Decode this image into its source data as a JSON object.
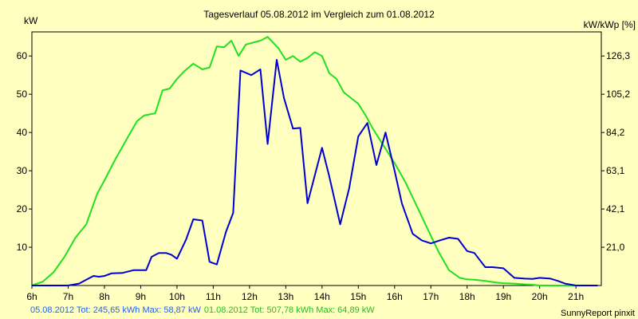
{
  "chart_data": {
    "type": "line",
    "title": "Tagesverlauf 05.08.2012 im Vergleich zum 01.08.2012",
    "ylabel_left": "kW",
    "ylabel_right": "kW/kWp [%]",
    "x_ticks": [
      "6h",
      "7h",
      "8h",
      "9h",
      "10h",
      "11h",
      "12h",
      "13h",
      "14h",
      "15h",
      "16h",
      "17h",
      "18h",
      "19h",
      "20h",
      "21h"
    ],
    "xlim": [
      6,
      21.7
    ],
    "ylim": [
      0,
      66.3
    ],
    "y_ticks_left": [
      10,
      20,
      30,
      40,
      50,
      60
    ],
    "y_ticks_left_labels": [
      "10",
      "20",
      "30",
      "40",
      "50",
      "60"
    ],
    "y_ticks_right_labels": [
      "21,0",
      "42,1",
      "63,1",
      "84,2",
      "105,2",
      "126,3"
    ],
    "grid": false,
    "series": [
      {
        "name": "05.08.2012",
        "color": "#0000d0",
        "x": [
          6.0,
          6.5,
          7.0,
          7.3,
          7.5,
          7.7,
          7.85,
          8.0,
          8.2,
          8.5,
          8.8,
          9.0,
          9.15,
          9.3,
          9.5,
          9.7,
          9.85,
          10.0,
          10.25,
          10.45,
          10.7,
          10.9,
          11.1,
          11.35,
          11.55,
          11.75,
          12.05,
          12.3,
          12.5,
          12.75,
          12.95,
          13.2,
          13.4,
          13.6,
          14.0,
          14.2,
          14.5,
          14.75,
          15.0,
          15.25,
          15.5,
          15.75,
          16.0,
          16.2,
          16.5,
          16.75,
          17.0,
          17.25,
          17.5,
          17.75,
          18.0,
          18.2,
          18.5,
          18.7,
          19.0,
          19.3,
          19.6,
          19.8,
          20.0,
          20.3,
          20.5,
          20.7,
          21.0,
          21.3,
          21.6
        ],
        "y": [
          0,
          0,
          0,
          0.5,
          1.5,
          2.5,
          2.3,
          2.5,
          3.2,
          3.3,
          4.0,
          4.0,
          4.0,
          7.5,
          8.5,
          8.5,
          8.0,
          7.0,
          12.0,
          17.3,
          17.0,
          6.2,
          5.5,
          14.0,
          19.0,
          56.2,
          55.0,
          56.5,
          37.0,
          59.0,
          49.0,
          41.0,
          41.2,
          21.5,
          36.0,
          28.5,
          16.0,
          25.5,
          39.0,
          42.5,
          31.5,
          40.0,
          30.0,
          21.5,
          13.5,
          11.8,
          11.0,
          11.8,
          12.5,
          12.2,
          9.0,
          8.5,
          4.8,
          4.8,
          4.5,
          2.0,
          1.8,
          1.7,
          2.0,
          1.8,
          1.2,
          0.5,
          0,
          0,
          0
        ],
        "total_kwh": "245,65",
        "max_kw": "58,87"
      },
      {
        "name": "01.08.2012",
        "color": "#20e020",
        "x": [
          6.0,
          6.3,
          6.6,
          6.9,
          7.2,
          7.5,
          7.8,
          8.0,
          8.3,
          8.6,
          8.9,
          9.1,
          9.4,
          9.6,
          9.8,
          10.0,
          10.2,
          10.45,
          10.7,
          10.9,
          11.1,
          11.3,
          11.5,
          11.7,
          11.9,
          12.1,
          12.3,
          12.5,
          12.65,
          12.8,
          13.0,
          13.2,
          13.4,
          13.6,
          13.8,
          14.0,
          14.2,
          14.4,
          14.6,
          14.8,
          15.0,
          15.2,
          15.4,
          15.6,
          15.8,
          16.0,
          16.3,
          16.6,
          16.9,
          17.2,
          17.5,
          17.8,
          18.0,
          18.2,
          18.5,
          18.8,
          19.0,
          19.3,
          19.6,
          19.8,
          20.0,
          20.3,
          20.6,
          20.9,
          21.2,
          21.6
        ],
        "y": [
          0,
          1.0,
          3.5,
          7.5,
          12.5,
          16.0,
          24.0,
          27.5,
          33.0,
          38.0,
          43.0,
          44.5,
          45.0,
          51.0,
          51.5,
          54.0,
          56.0,
          58.0,
          56.5,
          57.0,
          62.5,
          62.3,
          64.0,
          60.0,
          63.0,
          63.5,
          64.0,
          65.0,
          63.5,
          62.0,
          59.0,
          60.0,
          58.5,
          59.5,
          61.0,
          60.0,
          55.5,
          54.0,
          50.5,
          49.0,
          47.5,
          44.5,
          41.0,
          38.0,
          35.0,
          32.0,
          27.0,
          21.0,
          15.0,
          9.0,
          4.0,
          2.0,
          1.6,
          1.5,
          1.2,
          0.8,
          0.6,
          0.5,
          0.3,
          0.2,
          0,
          0,
          0,
          0,
          0,
          0
        ],
        "total_kwh": "507,78",
        "max_kw": "64,89"
      }
    ]
  },
  "footer": {
    "s1_prefix": "05.08.2012",
    "s1_text": " Tot: 245,65 kWh Max: 58,87 kW",
    "s2_prefix": "01.08.2012",
    "s2_text": " Tot: 507,78 kWh Max: 64,89 kW",
    "brand": "SunnyReport pinxit"
  },
  "colors": {
    "background": "#ffffc0",
    "blue": "#0000d0",
    "green": "#20e020",
    "footer_blue": "#2060ff"
  }
}
